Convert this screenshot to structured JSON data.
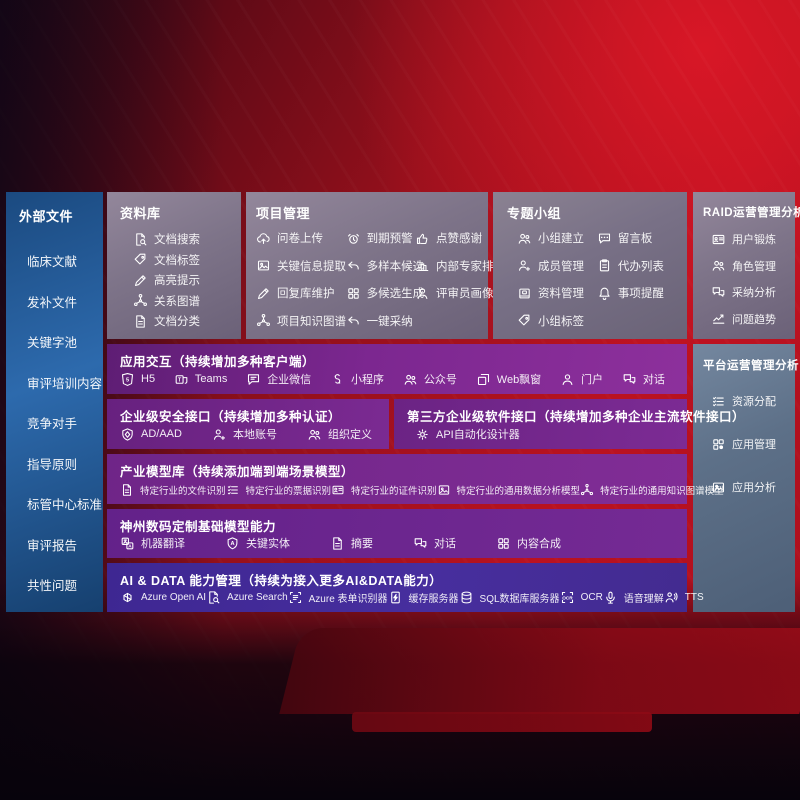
{
  "colors": {
    "background_red": "#bb1220",
    "sidebar_blue": "#2d6aad",
    "panel_mauve": "#7e7489",
    "panel_bluegray": "#5d7088",
    "band_purple": "#7c2790",
    "band_indigo": "#472e9e"
  },
  "sidebar": {
    "title": "外部文件",
    "items": [
      "临床文献",
      "发补文件",
      "关键字池",
      "审评培训内容",
      "竞争对手",
      "指导原则",
      "标管中心标准",
      "审评报告",
      "共性问题"
    ]
  },
  "top_panels": [
    {
      "title": "资料库",
      "items": [
        {
          "icon": "doc-search",
          "label": "文档搜索"
        },
        {
          "icon": "tag",
          "label": "文档标签"
        },
        {
          "icon": "pen",
          "label": "高亮提示"
        },
        {
          "icon": "graph",
          "label": "关系图谱"
        },
        {
          "icon": "doc",
          "label": "文档分类"
        }
      ]
    },
    {
      "title": "项目管理",
      "items": [
        {
          "icon": "cloud-up",
          "label": "问卷上传"
        },
        {
          "icon": "alarm",
          "label": "到期预警"
        },
        {
          "icon": "thumb",
          "label": "点赞感谢"
        },
        {
          "icon": "image",
          "label": "关键信息提取"
        },
        {
          "icon": "reply",
          "label": "多样本候选"
        },
        {
          "icon": "podium",
          "label": "内部专家排名"
        },
        {
          "icon": "pen",
          "label": "回复库维护"
        },
        {
          "icon": "grid",
          "label": "多候选生成"
        },
        {
          "icon": "person",
          "label": "评审员画像"
        },
        {
          "icon": "graph",
          "label": "项目知识图谱"
        },
        {
          "icon": "reply",
          "label": "一键采纳"
        }
      ]
    },
    {
      "title": "专题小组",
      "items": [
        {
          "icon": "people",
          "label": "小组建立"
        },
        {
          "icon": "bbs",
          "label": "留言板"
        },
        {
          "icon": "person-plus",
          "label": "成员管理"
        },
        {
          "icon": "clipboard",
          "label": "代办列表"
        },
        {
          "icon": "archive",
          "label": "资料管理"
        },
        {
          "icon": "bell",
          "label": "事项提醒"
        },
        {
          "icon": "tag",
          "label": "小组标签"
        }
      ]
    }
  ],
  "right_panels": [
    {
      "title": "RAID运营管理分析",
      "items": [
        {
          "icon": "id-card",
          "label": "用户锻炼"
        },
        {
          "icon": "people",
          "label": "角色管理"
        },
        {
          "icon": "chat-pair",
          "label": "采纳分析"
        },
        {
          "icon": "chart",
          "label": "问题趋势"
        }
      ]
    },
    {
      "title": "平台运营管理分析",
      "items": [
        {
          "icon": "list",
          "label": "资源分配"
        },
        {
          "icon": "apps",
          "label": "应用管理"
        },
        {
          "icon": "image",
          "label": "应用分析"
        }
      ]
    }
  ],
  "bands": {
    "interaction": {
      "title": "应用交互（持续增加多种客户端）",
      "items": [
        {
          "icon": "h5",
          "label": "H5"
        },
        {
          "icon": "teams",
          "label": "Teams"
        },
        {
          "icon": "chat",
          "label": "企业微信"
        },
        {
          "icon": "s-curve",
          "label": "小程序"
        },
        {
          "icon": "people",
          "label": "公众号"
        },
        {
          "icon": "window",
          "label": "Web飘窗"
        },
        {
          "icon": "person",
          "label": "门户"
        },
        {
          "icon": "chat-pair",
          "label": "对话"
        }
      ]
    },
    "security": {
      "title": "企业级安全接口（持续增加多种认证）",
      "items": [
        {
          "icon": "shield",
          "label": "AD/AAD"
        },
        {
          "icon": "person-plus",
          "label": "本地账号"
        },
        {
          "icon": "people",
          "label": "组织定义"
        }
      ]
    },
    "third_party": {
      "title": "第三方企业级软件接口（持续增加多种企业主流软件接口）",
      "items": [
        {
          "icon": "gear",
          "label": "API自动化设计器"
        }
      ]
    },
    "industry_models": {
      "title": "产业模型库（持续添加端到端场景模型）",
      "items": [
        {
          "icon": "doc",
          "label": "特定行业的文件识别"
        },
        {
          "icon": "list",
          "label": "特定行业的票据识别"
        },
        {
          "icon": "id-card",
          "label": "特定行业的证件识别"
        },
        {
          "icon": "image",
          "label": "特定行业的通用数据分析模型"
        },
        {
          "icon": "graph",
          "label": "特定行业的通用知识图谱模型"
        }
      ]
    },
    "base_models": {
      "title": "神州数码定制基础模型能力",
      "items": [
        {
          "icon": "translate",
          "label": "机器翻译"
        },
        {
          "icon": "entity",
          "label": "关键实体"
        },
        {
          "icon": "doc",
          "label": "摘要"
        },
        {
          "icon": "chat-pair",
          "label": "对话"
        },
        {
          "icon": "grid",
          "label": "内容合成"
        }
      ]
    },
    "ai_data": {
      "title": "AI & DATA 能力管理（持续为接入更多AI&DATA能力）",
      "items": [
        {
          "icon": "swirl",
          "label": "Azure Open AI"
        },
        {
          "icon": "doc-search",
          "label": "Azure Search"
        },
        {
          "icon": "form",
          "label": "Azure 表单识别器"
        },
        {
          "icon": "bolt-doc",
          "label": "缓存服务器"
        },
        {
          "icon": "db",
          "label": "SQL数据库服务器"
        },
        {
          "icon": "ocr",
          "label": "OCR"
        },
        {
          "icon": "mic",
          "label": "语音理解"
        },
        {
          "icon": "tts",
          "label": "TTS"
        }
      ]
    }
  }
}
